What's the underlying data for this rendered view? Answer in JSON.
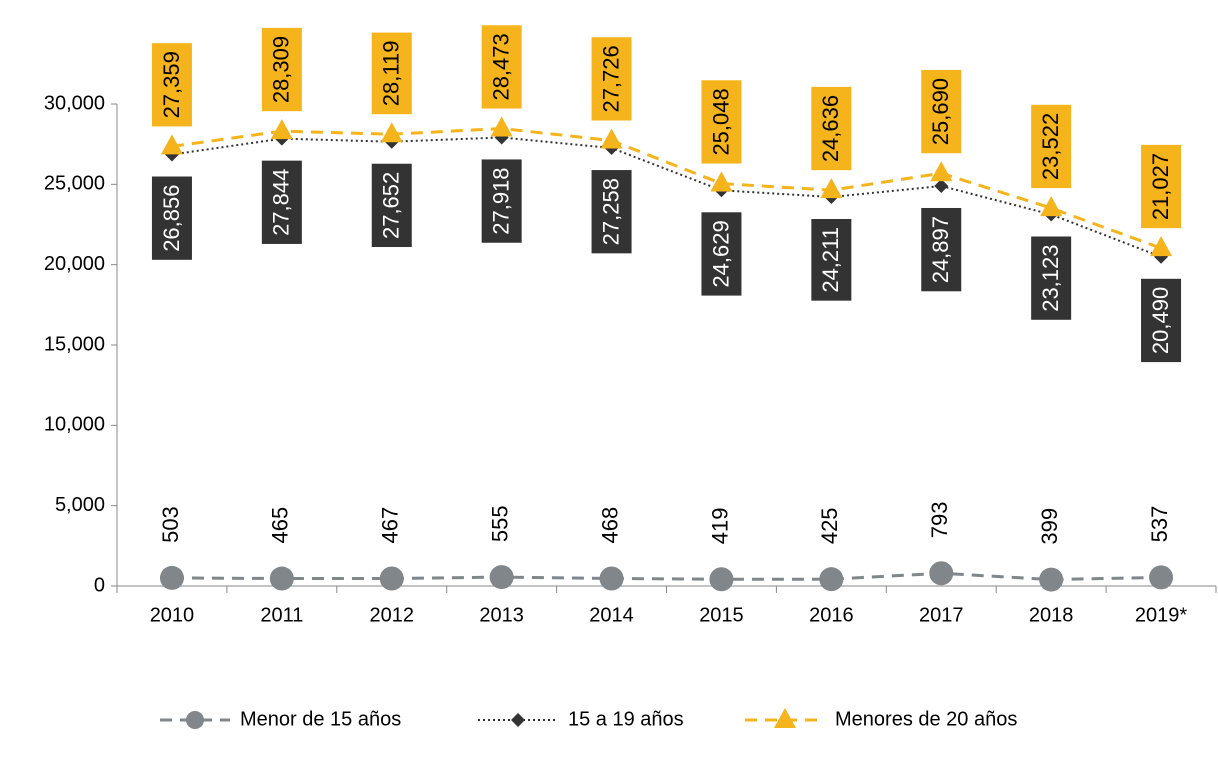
{
  "chart_data": {
    "type": "line",
    "categories": [
      "2010",
      "2011",
      "2012",
      "2013",
      "2014",
      "2015",
      "2016",
      "2017",
      "2018",
      "2019*"
    ],
    "ylim": [
      0,
      30000
    ],
    "yticks": [
      0,
      {
        "value": 5000,
        "label": "5,000"
      },
      {
        "value": 10000,
        "label": "10,000"
      },
      {
        "value": 15000,
        "label": "15,000"
      },
      {
        "value": 20000,
        "label": "20,000"
      },
      {
        "value": 25000,
        "label": "25,000"
      },
      {
        "value": 30000,
        "label": "30,000"
      }
    ],
    "series": [
      {
        "name": "Menor de 15 años",
        "color": "#80868a",
        "marker": "circle",
        "line_style": "dashed",
        "values": [
          503,
          465,
          467,
          555,
          468,
          419,
          425,
          793,
          399,
          537
        ]
      },
      {
        "name": "15 a 19 años",
        "color": "#333333",
        "marker": "diamond",
        "line_style": "dotted",
        "values": [
          26856,
          27844,
          27652,
          27918,
          27258,
          24629,
          24211,
          24897,
          23123,
          20490
        ],
        "value_labels": [
          "26,856",
          "27,844",
          "27,652",
          "27,918",
          "27,258",
          "24,629",
          "24,211",
          "24,897",
          "23,123",
          "20,490"
        ]
      },
      {
        "name": "Menores de 20 años",
        "color": "#f5b41c",
        "marker": "triangle",
        "line_style": "dashed",
        "values": [
          27359,
          28309,
          28119,
          28473,
          27726,
          25048,
          24636,
          25690,
          23522,
          21027
        ],
        "value_labels": [
          "27,359",
          "28,309",
          "28,119",
          "28,473",
          "27,726",
          "25,048",
          "24,636",
          "25,690",
          "23,522",
          "21,027"
        ]
      }
    ],
    "legend": "bottom"
  }
}
